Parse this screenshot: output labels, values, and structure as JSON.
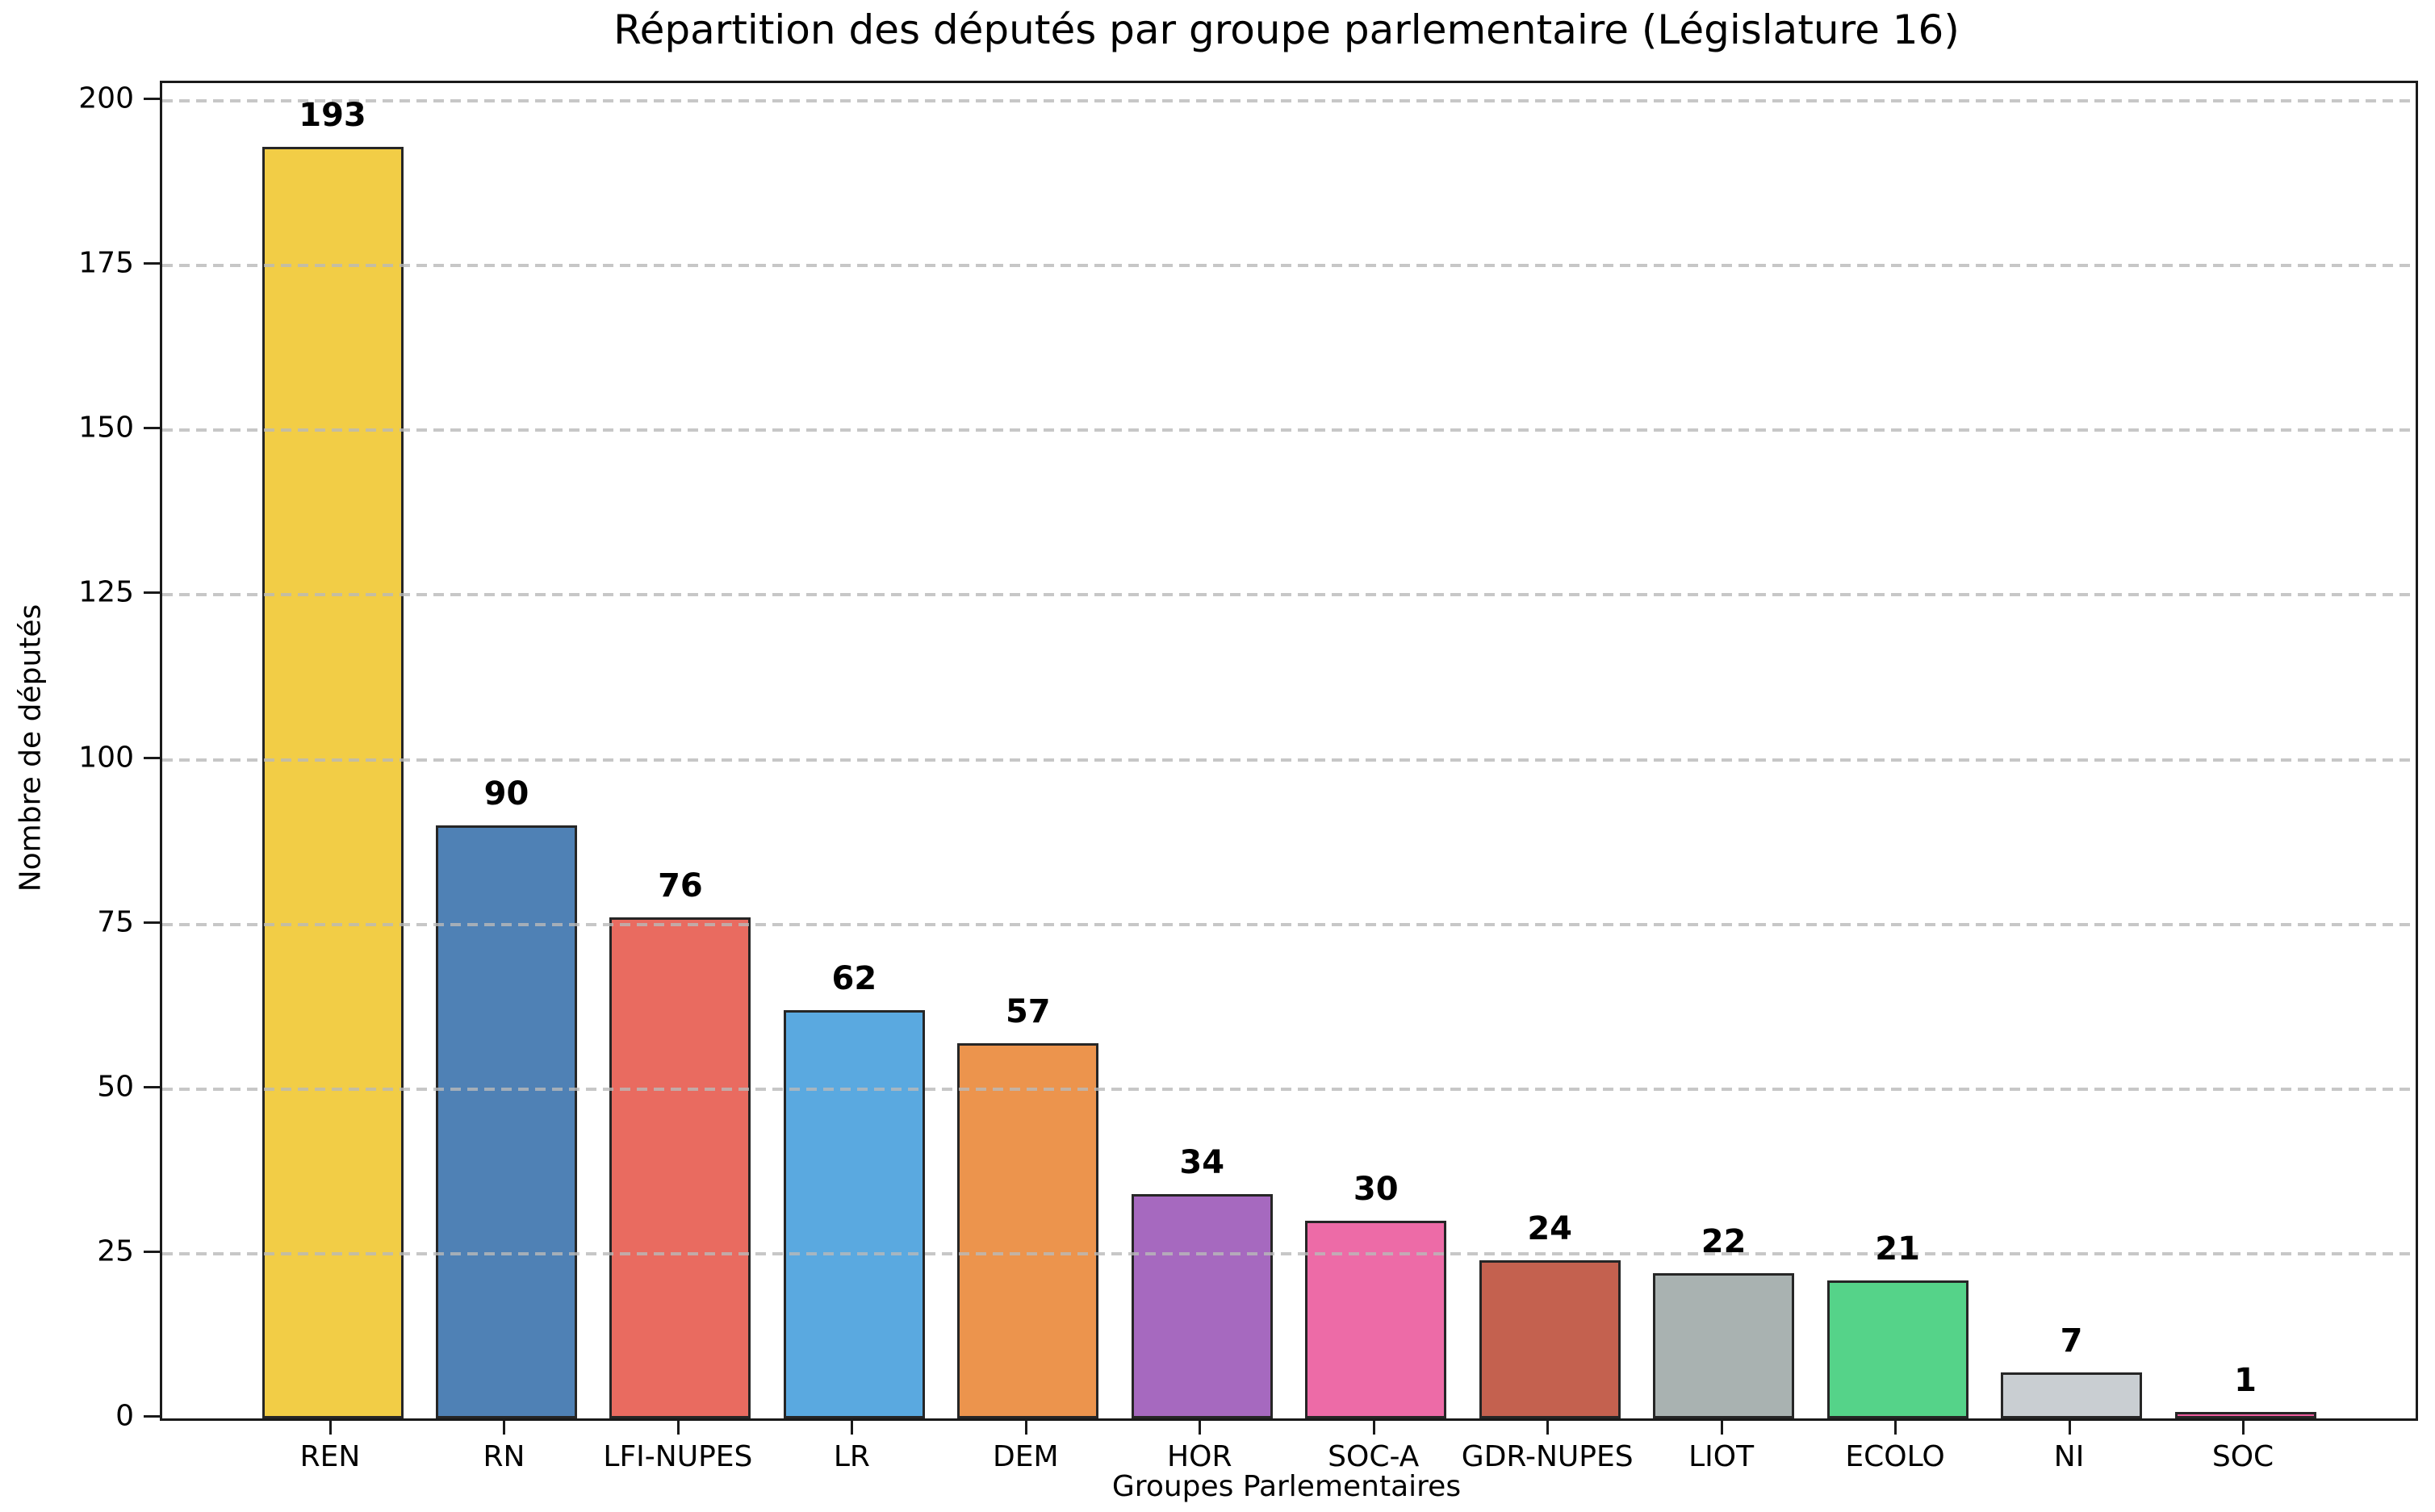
{
  "figure": {
    "background_color": "#ffffff",
    "text_color": "#000000",
    "spine_color": "#1a1a1a",
    "gridline_color": "#b9b9b9",
    "grid_style": "dashed-horizontal-over-bars"
  },
  "chart_data": {
    "type": "bar",
    "title": "Répartition des députés par groupe parlementaire (Législature 16)",
    "xlabel": "Groupes Parlementaires",
    "ylabel": "Nombre de députés",
    "categories": [
      "REN",
      "RN",
      "LFI-NUPES",
      "LR",
      "DEM",
      "HOR",
      "SOC-A",
      "GDR-NUPES",
      "LIOT",
      "ECOLO",
      "NI",
      "SOC"
    ],
    "values": [
      193,
      90,
      76,
      62,
      57,
      34,
      30,
      24,
      22,
      21,
      7,
      1
    ],
    "value_labels": [
      "193",
      "90",
      "76",
      "62",
      "57",
      "34",
      "30",
      "24",
      "22",
      "21",
      "7",
      "1"
    ],
    "bar_colors": [
      "#F2CD46",
      "#4F81B5",
      "#E96B60",
      "#5AA9E0",
      "#EC944D",
      "#A669BF",
      "#ED6BA7",
      "#C4614F",
      "#A9B2B1",
      "#55D389",
      "#C9CED2",
      "#EE5C9E"
    ],
    "bar_edge_color": "#262626",
    "ylim": [
      0,
      200
    ],
    "yticks": [
      0,
      25,
      50,
      75,
      100,
      125,
      150,
      175,
      200
    ],
    "grid": "on",
    "legend": "none"
  }
}
